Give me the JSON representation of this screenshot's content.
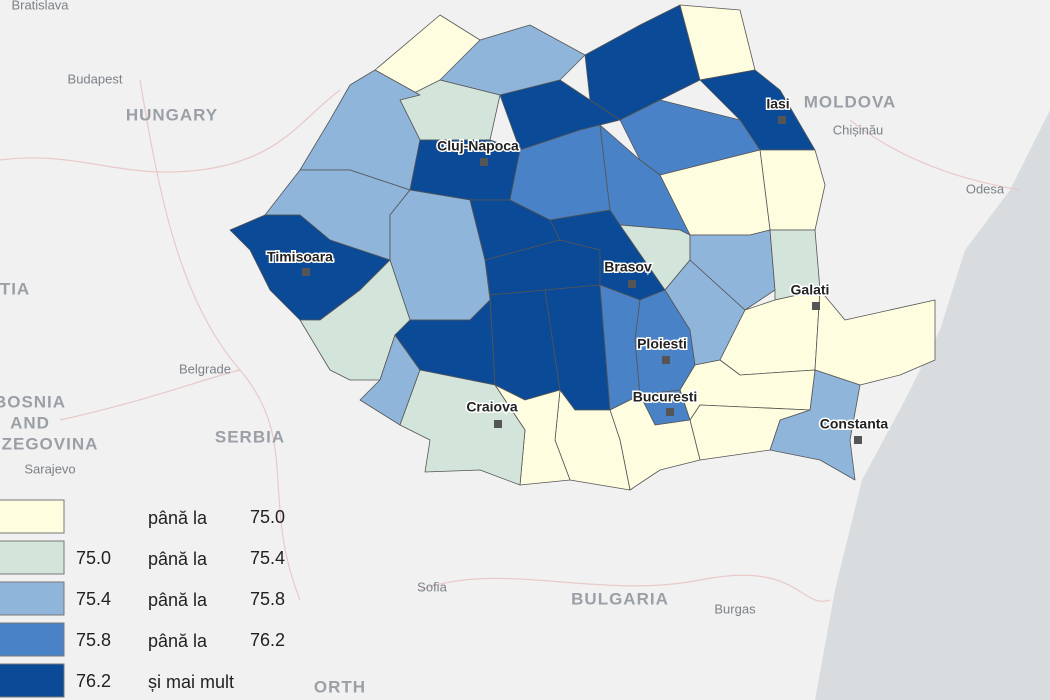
{
  "map_labels": [
    {
      "text": "Bratislava",
      "kind": "city"
    },
    {
      "text": "Budapest",
      "kind": "city"
    },
    {
      "text": "HUNGARY",
      "kind": "country"
    },
    {
      "text": "MOLDOVA",
      "kind": "country"
    },
    {
      "text": "Chișinău",
      "kind": "city"
    },
    {
      "text": "Odesa",
      "kind": "city"
    },
    {
      "text": "TIA",
      "kind": "country"
    },
    {
      "text": "Belgrade",
      "kind": "city"
    },
    {
      "text": "BOSNIA",
      "kind": "country"
    },
    {
      "text": "AND",
      "kind": "country"
    },
    {
      "text": "ZEGOVINA",
      "kind": "country"
    },
    {
      "text": "SERBIA",
      "kind": "country"
    },
    {
      "text": "Sarajevo",
      "kind": "city"
    },
    {
      "text": "Sofia",
      "kind": "city"
    },
    {
      "text": "BULGARIA",
      "kind": "country"
    },
    {
      "text": "Burgas",
      "kind": "city"
    },
    {
      "text": "ORTH",
      "kind": "country"
    }
  ],
  "cities": [
    "Iasi",
    "Cluj-Napoca",
    "Timisoara",
    "Brasov",
    "Galati",
    "Ploiesti",
    "Bucuresti",
    "Craiova",
    "Constanta"
  ],
  "legend": [
    {
      "color": "#fffde0",
      "text": "până la",
      "to": "75.0"
    },
    {
      "color": "#d3e4da",
      "from": "75.0",
      "text": "până la",
      "to": "75.4"
    },
    {
      "color": "#8fb5db",
      "from": "75.4",
      "text": "până la",
      "to": "75.8"
    },
    {
      "color": "#4a82c8",
      "from": "75.8",
      "text": "până la",
      "to": "76.2"
    },
    {
      "color": "#0b4a96",
      "from": "76.2",
      "text": "și mai mult"
    }
  ],
  "region_classes": [
    0,
    2,
    4,
    0,
    4,
    3,
    0,
    0,
    4,
    1,
    2,
    4,
    3,
    3,
    2,
    4,
    2,
    4,
    4,
    4,
    1,
    1,
    2,
    4,
    4,
    4,
    3,
    3,
    2,
    2,
    1,
    0,
    0,
    2,
    0,
    0,
    3,
    0,
    0,
    0,
    1
  ]
}
